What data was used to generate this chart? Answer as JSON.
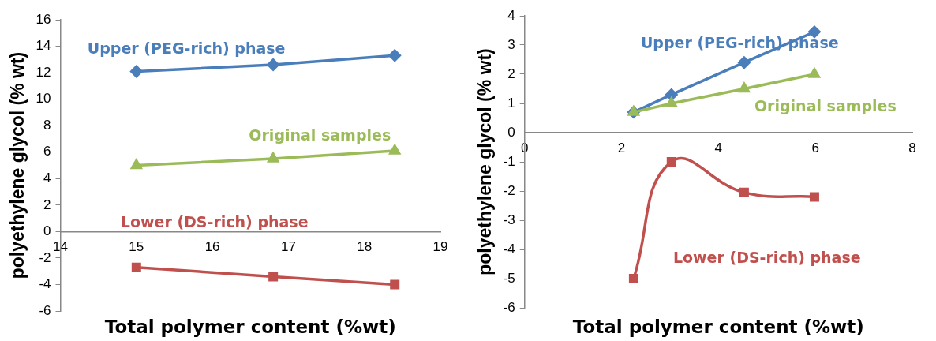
{
  "chart_data": [
    {
      "type": "line",
      "xlabel": "Total polymer content (%wt)",
      "ylabel": "polyethylene glycol (% wt)",
      "x": [
        15,
        16.8,
        18.4
      ],
      "xlim": [
        14,
        19
      ],
      "xticks": [
        14,
        15,
        16,
        17,
        18,
        19
      ],
      "ylim": [
        -6,
        16
      ],
      "yticks": [
        -6,
        -4,
        -2,
        0,
        2,
        4,
        6,
        8,
        10,
        12,
        14,
        16
      ],
      "grid": false,
      "legend": false,
      "series": [
        {
          "name": "Upper (PEG-rich) phase",
          "color": "#4a7ebb",
          "marker": "diamond",
          "values": [
            12.1,
            12.6,
            13.3
          ]
        },
        {
          "name": "Original samples",
          "color": "#9bbb59",
          "marker": "triangle",
          "values": [
            5.0,
            5.5,
            6.1
          ]
        },
        {
          "name": "Lower (DS-rich) phase",
          "color": "#c0504d",
          "marker": "square",
          "values": [
            -2.7,
            -3.4,
            -4.0
          ]
        }
      ]
    },
    {
      "type": "line",
      "xlabel": "Total polymer content (%wt)",
      "ylabel": "polyethylene glycol (% wt)",
      "x": [
        2.25,
        3.03,
        4.53,
        5.98
      ],
      "xlim": [
        0,
        8
      ],
      "xticks": [
        0,
        2,
        4,
        6,
        8
      ],
      "ylim": [
        -6,
        4
      ],
      "yticks": [
        -6,
        -5,
        -4,
        -3,
        -2,
        -1,
        0,
        1,
        2,
        3,
        4
      ],
      "grid": false,
      "legend": false,
      "series": [
        {
          "name": "Upper (PEG-rich) phase",
          "color": "#4a7ebb",
          "marker": "diamond",
          "values": [
            0.7,
            1.3,
            2.4,
            3.45
          ]
        },
        {
          "name": "Original samples",
          "color": "#9bbb59",
          "marker": "triangle",
          "values": [
            0.7,
            1.0,
            1.5,
            2.0
          ]
        },
        {
          "name": "Lower (DS-rich) phase",
          "color": "#c0504d",
          "marker": "square",
          "values": [
            -5.0,
            -1.0,
            -2.05,
            -2.2
          ]
        }
      ]
    }
  ]
}
